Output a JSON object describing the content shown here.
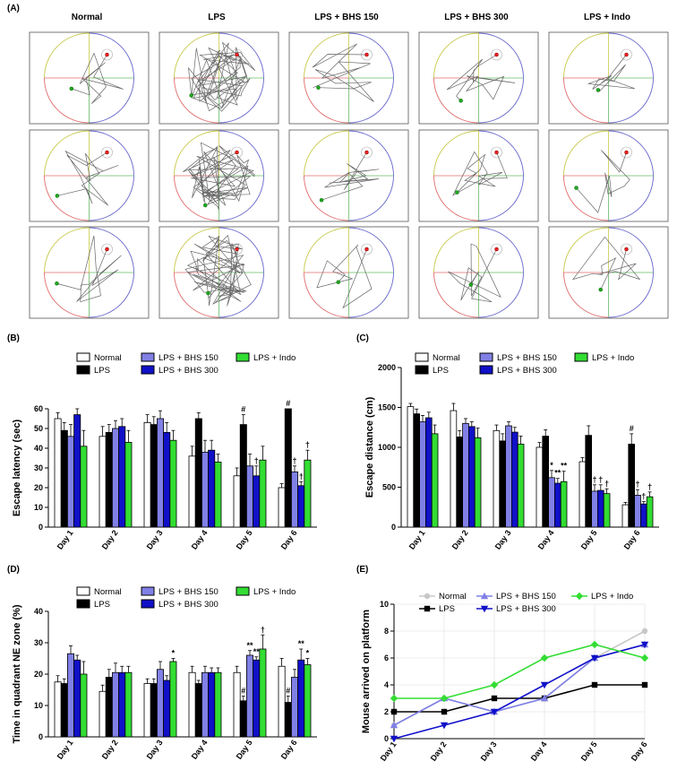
{
  "panel_a": {
    "label": "(A)",
    "groups": [
      "Normal",
      "LPS",
      "LPS + BHS 150",
      "LPS + BHS 300",
      "LPS + Indo"
    ]
  },
  "colors": {
    "Normal": "#ffffff",
    "LPS": "#000000",
    "LPS + BHS 150": "#8080e6",
    "LPS + BHS 300": "#1010c8",
    "LPS + Indo": "#33dd33",
    "edge": "#000000"
  },
  "chart_data": [
    {
      "panel": "(B)",
      "type": "bar",
      "title": "",
      "xlabel": "",
      "ylabel": "Escape latency (sec)",
      "ylim": [
        0,
        60
      ],
      "yticks": [
        0,
        10,
        20,
        30,
        40,
        50,
        60
      ],
      "categories": [
        "Day 1",
        "Day 2",
        "Day 3",
        "Day 4",
        "Day 5",
        "Day 6"
      ],
      "legend": [
        "Normal",
        "LPS",
        "LPS + BHS 150",
        "LPS + BHS 300",
        "LPS + Indo"
      ],
      "series": [
        {
          "name": "Normal",
          "values": [
            55,
            46,
            53,
            36,
            26,
            20
          ],
          "err": [
            3,
            5,
            4,
            5,
            4,
            2
          ]
        },
        {
          "name": "LPS",
          "values": [
            49,
            48,
            52,
            55,
            52,
            60
          ],
          "err": [
            4,
            4,
            4,
            3,
            5,
            0
          ]
        },
        {
          "name": "LPS + BHS 150",
          "values": [
            46,
            50,
            55,
            38,
            31,
            28
          ],
          "err": [
            6,
            4,
            4,
            6,
            6,
            3
          ]
        },
        {
          "name": "LPS + BHS 300",
          "values": [
            57,
            51,
            48,
            39,
            26,
            21
          ],
          "err": [
            3,
            4,
            5,
            5,
            5,
            2
          ]
        },
        {
          "name": "LPS + Indo",
          "values": [
            41,
            43,
            44,
            33,
            34,
            34
          ],
          "err": [
            8,
            6,
            5,
            4,
            7,
            5
          ]
        }
      ],
      "annotations": [
        {
          "text": "#",
          "category": "Day 5",
          "series": "LPS"
        },
        {
          "text": "†",
          "category": "Day 5",
          "series": "LPS + BHS 300"
        },
        {
          "text": "#",
          "category": "Day 6",
          "series": "LPS"
        },
        {
          "text": "†",
          "category": "Day 6",
          "series": "LPS + BHS 150"
        },
        {
          "text": "†",
          "category": "Day 6",
          "series": "LPS + BHS 300"
        },
        {
          "text": "†",
          "category": "Day 6",
          "series": "LPS + Indo"
        }
      ]
    },
    {
      "panel": "(C)",
      "type": "bar",
      "title": "",
      "xlabel": "",
      "ylabel": "Escape distance (cm)",
      "ylim": [
        0,
        2000
      ],
      "yticks": [
        0,
        500,
        1000,
        1500,
        2000
      ],
      "categories": [
        "Day 1",
        "Day 2",
        "Day 3",
        "Day 4",
        "Day 5",
        "Day 6"
      ],
      "legend": [
        "Normal",
        "LPS",
        "LPS + BHS 150",
        "LPS + BHS 300",
        "LPS + Indo"
      ],
      "series": [
        {
          "name": "Normal",
          "values": [
            1510,
            1460,
            1210,
            1000,
            820,
            280
          ],
          "err": [
            40,
            90,
            70,
            60,
            50,
            30
          ]
        },
        {
          "name": "LPS",
          "values": [
            1420,
            1130,
            1080,
            1140,
            1150,
            1040
          ],
          "err": [
            60,
            80,
            90,
            80,
            120,
            130
          ]
        },
        {
          "name": "LPS + BHS 150",
          "values": [
            1320,
            1300,
            1270,
            620,
            450,
            400
          ],
          "err": [
            80,
            60,
            50,
            90,
            80,
            70
          ]
        },
        {
          "name": "LPS + BHS 300",
          "values": [
            1370,
            1260,
            1190,
            550,
            460,
            290
          ],
          "err": [
            70,
            60,
            60,
            60,
            70,
            30
          ]
        },
        {
          "name": "LPS + Indo",
          "values": [
            1170,
            1120,
            1040,
            570,
            420,
            380
          ],
          "err": [
            110,
            120,
            100,
            130,
            60,
            60
          ]
        }
      ],
      "annotations": [
        {
          "text": "*",
          "category": "Day 4",
          "series": "LPS + BHS 150"
        },
        {
          "text": "**",
          "category": "Day 4",
          "series": "LPS + BHS 300"
        },
        {
          "text": "**",
          "category": "Day 4",
          "series": "LPS + Indo"
        },
        {
          "text": "†",
          "category": "Day 5",
          "series": "LPS + BHS 150"
        },
        {
          "text": "†",
          "category": "Day 5",
          "series": "LPS + BHS 300"
        },
        {
          "text": "†",
          "category": "Day 5",
          "series": "LPS + Indo"
        },
        {
          "text": "#",
          "category": "Day 6",
          "series": "LPS"
        },
        {
          "text": "†",
          "category": "Day 6",
          "series": "LPS + BHS 150"
        },
        {
          "text": "†",
          "category": "Day 6",
          "series": "LPS + BHS 300"
        },
        {
          "text": "†",
          "category": "Day 6",
          "series": "LPS + Indo"
        }
      ]
    },
    {
      "panel": "(D)",
      "type": "bar",
      "title": "",
      "xlabel": "",
      "ylabel": "Time in quadrant NE zone (%)",
      "ylim": [
        0,
        40
      ],
      "yticks": [
        0,
        10,
        20,
        30,
        40
      ],
      "categories": [
        "Day 1",
        "Day 2",
        "Day 3",
        "Day 4",
        "Day 5",
        "Day 6"
      ],
      "legend": [
        "Normal",
        "LPS",
        "LPS + BHS 150",
        "LPS + BHS 300",
        "LPS + Indo"
      ],
      "series": [
        {
          "name": "Normal",
          "values": [
            17.5,
            14.5,
            17,
            20.5,
            20.5,
            22.5
          ],
          "err": [
            2,
            2,
            1.5,
            2,
            2,
            2.5
          ]
        },
        {
          "name": "LPS",
          "values": [
            17,
            19,
            17,
            17,
            11.5,
            11
          ],
          "err": [
            1.5,
            2.5,
            1.5,
            1,
            1.5,
            2
          ]
        },
        {
          "name": "LPS + BHS 150",
          "values": [
            26.5,
            20.5,
            21.5,
            20.5,
            26,
            19
          ],
          "err": [
            2.5,
            3,
            2.5,
            2,
            1.5,
            2.5
          ]
        },
        {
          "name": "LPS + BHS 300",
          "values": [
            24.5,
            20.5,
            18,
            20.5,
            24.5,
            24.5
          ],
          "err": [
            1.5,
            2,
            1.5,
            1.5,
            1,
            3.5
          ]
        },
        {
          "name": "LPS + Indo",
          "values": [
            20,
            20.5,
            24,
            20.5,
            28,
            23
          ],
          "err": [
            4,
            2,
            1,
            1.5,
            4.5,
            2
          ]
        }
      ],
      "annotations": [
        {
          "text": "*",
          "category": "Day 3",
          "series": "LPS + Indo"
        },
        {
          "text": "#",
          "category": "Day 5",
          "series": "LPS"
        },
        {
          "text": "**",
          "category": "Day 5",
          "series": "LPS + BHS 150"
        },
        {
          "text": "**",
          "category": "Day 5",
          "series": "LPS + BHS 300"
        },
        {
          "text": "†",
          "category": "Day 5",
          "series": "LPS + Indo"
        },
        {
          "text": "#",
          "category": "Day 6",
          "series": "LPS"
        },
        {
          "text": "**",
          "category": "Day 6",
          "series": "LPS + BHS 300"
        },
        {
          "text": "*",
          "category": "Day 6",
          "series": "LPS + Indo"
        }
      ]
    },
    {
      "panel": "(E)",
      "type": "line",
      "title": "",
      "xlabel": "",
      "ylabel": "Mouse arrived on platform",
      "ylim": [
        0,
        10
      ],
      "yticks": [
        0,
        2,
        4,
        6,
        8,
        10
      ],
      "categories": [
        "Day 1",
        "Day 2",
        "Day 3",
        "Day 4",
        "Day 5",
        "Day 6"
      ],
      "grid": true,
      "legend": [
        "Normal",
        "LPS",
        "LPS + BHS 150",
        "LPS + BHS 300",
        "LPS + Indo"
      ],
      "series": [
        {
          "name": "Normal",
          "values": [
            1,
            3,
            2,
            3,
            6,
            8
          ],
          "color": "#c8c8c8",
          "marker": "circle"
        },
        {
          "name": "LPS",
          "values": [
            2,
            2,
            3,
            3,
            4,
            4
          ],
          "color": "#000000",
          "marker": "square"
        },
        {
          "name": "LPS + BHS 150",
          "values": [
            1,
            3,
            2,
            3,
            6,
            7
          ],
          "color": "#8080e6",
          "marker": "triangle-up"
        },
        {
          "name": "LPS + BHS 300",
          "values": [
            0,
            1,
            2,
            4,
            6,
            7
          ],
          "color": "#1010c8",
          "marker": "triangle-down"
        },
        {
          "name": "LPS + Indo",
          "values": [
            3,
            3,
            4,
            6,
            7,
            6
          ],
          "color": "#33dd33",
          "marker": "diamond"
        }
      ]
    }
  ]
}
